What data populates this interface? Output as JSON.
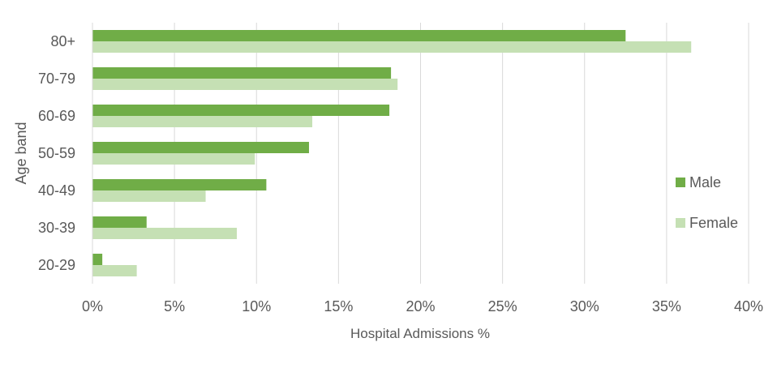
{
  "chart_data": {
    "type": "bar",
    "orientation": "horizontal",
    "categories": [
      "80+",
      "70-79",
      "60-69",
      "50-59",
      "40-49",
      "30-39",
      "20-29"
    ],
    "series": [
      {
        "name": "Male",
        "color": "#70ad47",
        "values": [
          32.5,
          18.2,
          18.1,
          13.2,
          10.6,
          3.3,
          0.6
        ]
      },
      {
        "name": "Female",
        "color": "#c5e0b4",
        "values": [
          36.5,
          18.6,
          13.4,
          9.9,
          6.9,
          8.8,
          2.7
        ]
      }
    ],
    "xlabel": "Hospital Admissions %",
    "ylabel": "Age band",
    "xlim": [
      0,
      40
    ],
    "xticks": [
      "0%",
      "5%",
      "10%",
      "15%",
      "20%",
      "25%",
      "30%",
      "35%",
      "40%"
    ],
    "grid": "vertical",
    "legend_position": "right"
  }
}
